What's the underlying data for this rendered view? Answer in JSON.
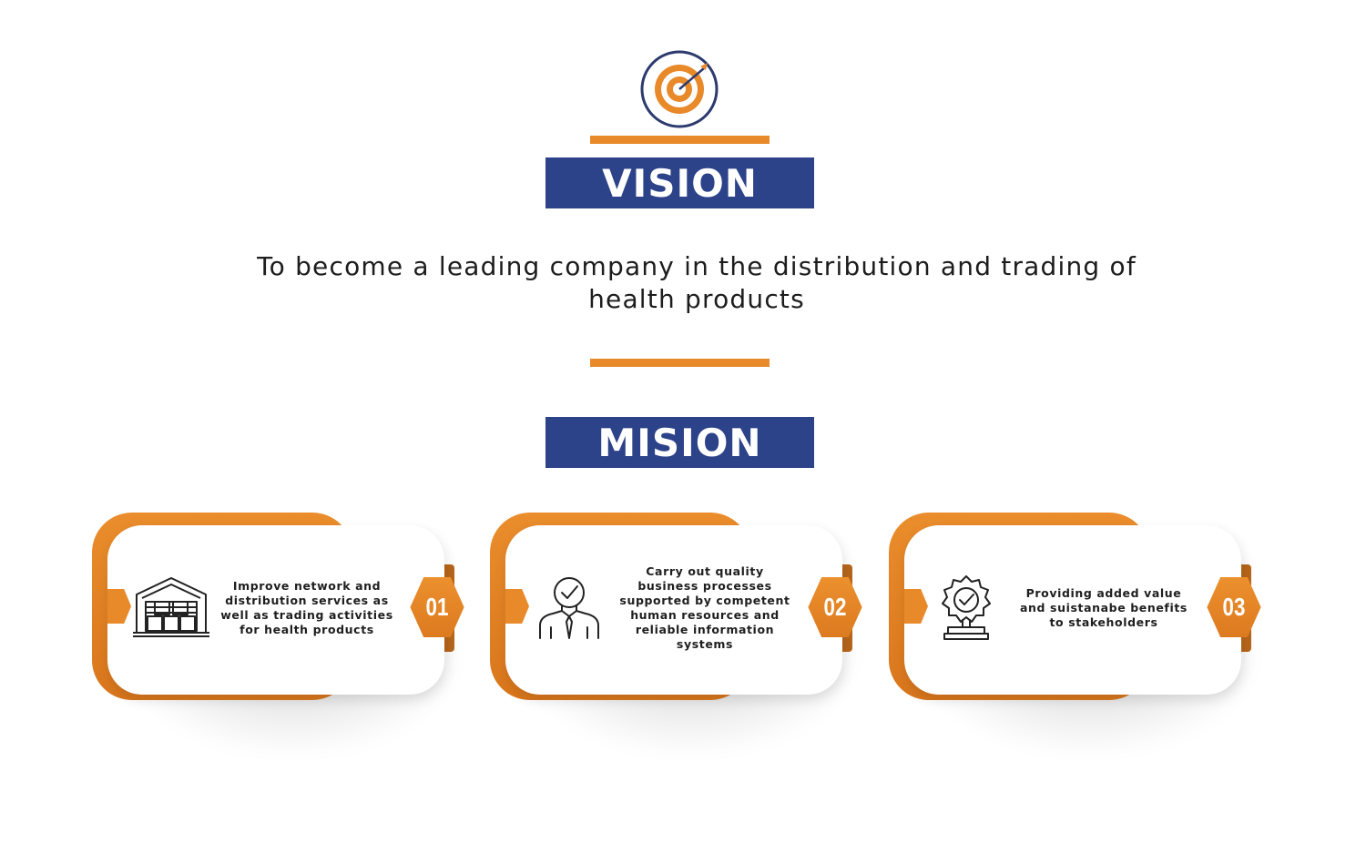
{
  "vision": {
    "heading": "VISION",
    "statement": "To become a leading company in the distribution and trading of health products"
  },
  "mission": {
    "heading": "MISION",
    "items": [
      {
        "number": "01",
        "text": "Improve network and distribution services as well as trading activities for health products",
        "icon": "warehouse-icon"
      },
      {
        "number": "02",
        "text": "Carry out quality business processes supported by competent human resources and reliable information systems",
        "icon": "businessman-check-icon"
      },
      {
        "number": "03",
        "text": "Providing added value and suistanabe benefits to stakeholders",
        "icon": "award-badge-icon"
      }
    ]
  },
  "colors": {
    "accent_orange": "#e8892a",
    "heading_blue": "#2c4289",
    "text_dark": "#1d1d1d"
  }
}
